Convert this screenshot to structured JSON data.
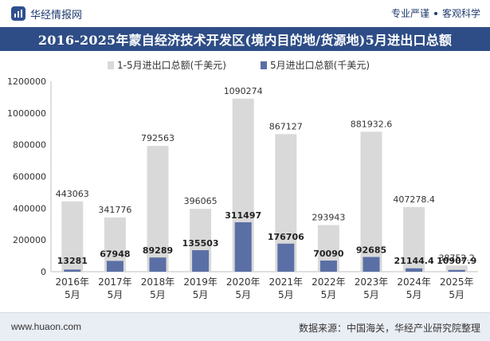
{
  "header": {
    "brand_name": "华经情报网",
    "slogan_left": "专业严谨",
    "slogan_right": "客观科学"
  },
  "footer": {
    "url": "www.huaon.com",
    "source": "数据来源：中国海关，华经产业研究院整理"
  },
  "colors": {
    "series1": "#d9d9d9",
    "series2": "#5a6fa5",
    "title_bg": "#2e4d86"
  },
  "chart_data": {
    "type": "bar",
    "title": "2016-2025年蒙自经济技术开发区(境内目的地/货源地)5月进出口总额",
    "xlabel": "",
    "ylabel": "",
    "ylim": [
      0,
      1200000
    ],
    "yticks": [
      "0",
      "200000",
      "400000",
      "600000",
      "800000",
      "1000000",
      "1200000"
    ],
    "categories": [
      [
        "2016年",
        "5月"
      ],
      [
        "2017年",
        "5月"
      ],
      [
        "2018年",
        "5月"
      ],
      [
        "2019年",
        "5月"
      ],
      [
        "2020年",
        "5月"
      ],
      [
        "2021年",
        "5月"
      ],
      [
        "2022年",
        "5月"
      ],
      [
        "2023年",
        "5月"
      ],
      [
        "2024年",
        "5月"
      ],
      [
        "2025年",
        "5月"
      ]
    ],
    "legend_position": "top",
    "series": [
      {
        "name": "1-5月进出口总额(千美元)",
        "values": [
          443063,
          341776,
          792563,
          396065,
          1090274,
          867127,
          293943,
          881932.6,
          407278.4,
          38752.2
        ],
        "labels": [
          "443063",
          "341776",
          "792563",
          "396065",
          "1090274",
          "867127",
          "293943",
          "881932.6",
          "407278.4",
          "38752.2"
        ]
      },
      {
        "name": "5月进出口总额(千美元)",
        "values": [
          13281,
          67948,
          89289,
          135503,
          311497,
          176706,
          70090,
          92685,
          21144.4,
          10907.9
        ],
        "labels": [
          "13281",
          "67948",
          "89289",
          "135503",
          "311497",
          "176706",
          "70090",
          "92685",
          "21144.4",
          "10907.9"
        ]
      }
    ]
  }
}
